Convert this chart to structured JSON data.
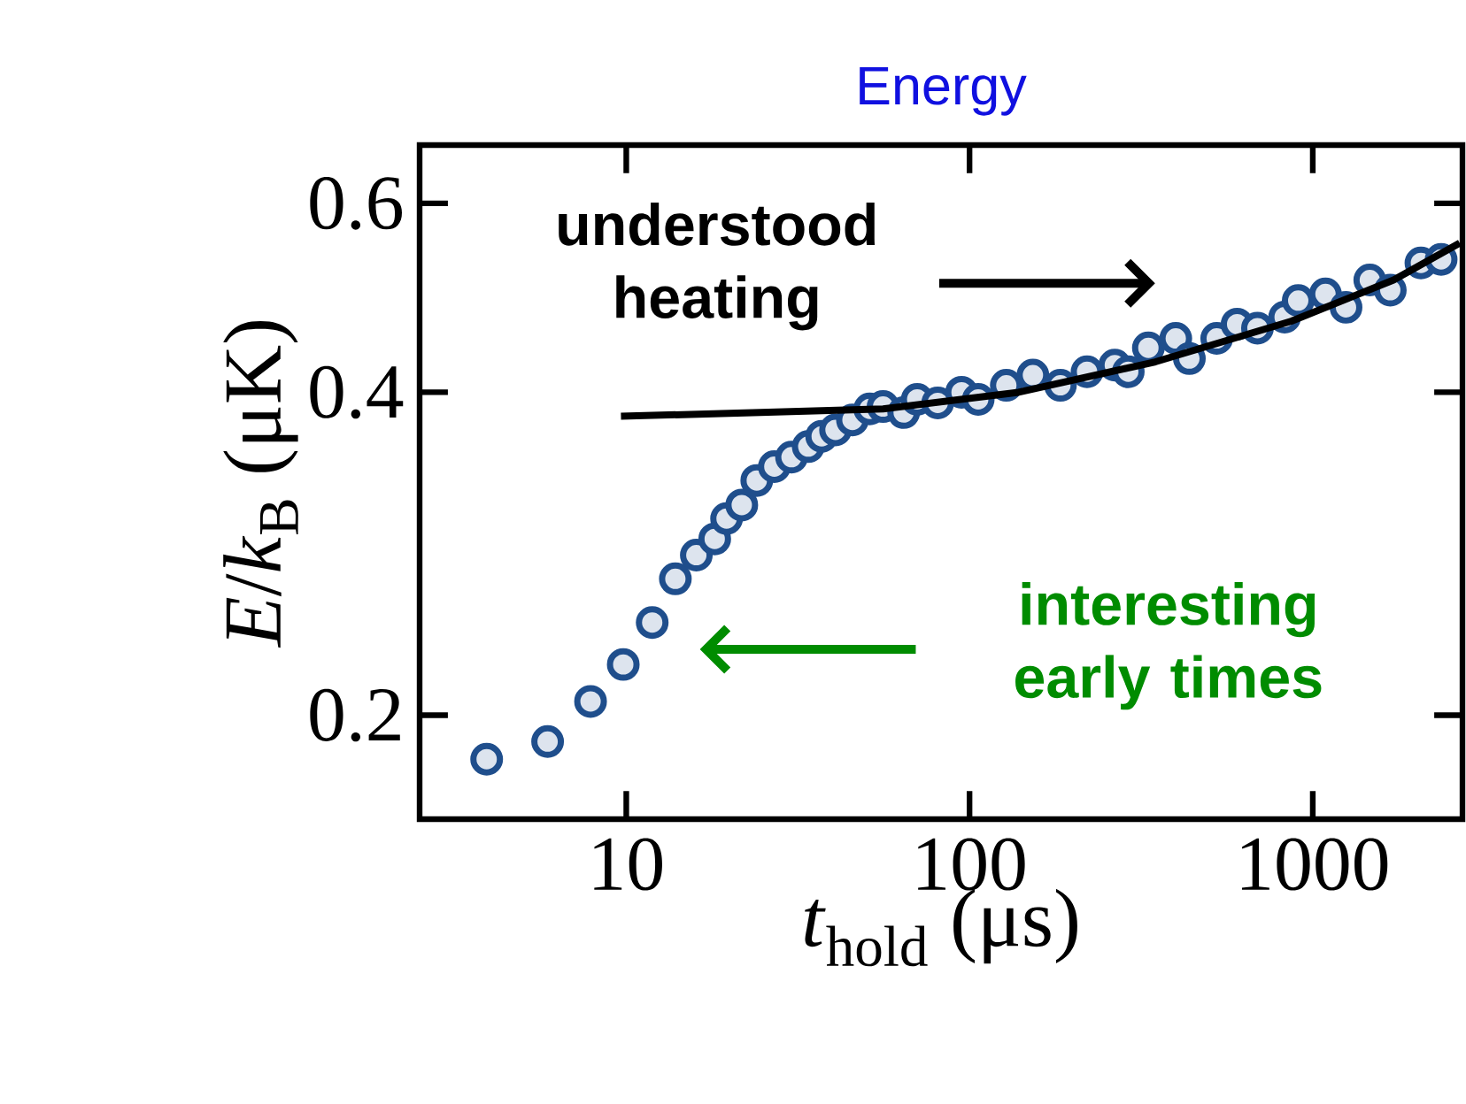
{
  "chart_data": {
    "type": "scatter",
    "title": "Energy",
    "xlabel": "*t*$_{hold}$ (μs)",
    "ylabel": "*E*/*k*$_{B}$ (μK)",
    "series": [
      {
        "color": "#1f4e8c",
        "marker": "circle",
        "x": [
          3.92,
          5.9,
          7.87,
          9.8,
          11.9,
          13.9,
          16.0,
          18.1,
          19.6,
          21.7,
          24.0,
          27.0,
          30.3,
          33.9,
          37.1,
          40.7,
          45.6,
          51.2,
          56.0,
          64.3,
          70.4,
          80.8,
          94.8,
          106,
          128,
          153,
          184,
          220,
          265,
          290,
          332,
          399,
          437,
          525,
          602,
          690,
          828,
          907,
          1089,
          1250,
          1466,
          1682,
          2066,
          2366
        ],
        "values": [
          0.182,
          0.189,
          0.206,
          0.223,
          0.244,
          0.268,
          0.282,
          0.292,
          0.305,
          0.314,
          0.331,
          0.341,
          0.348,
          0.356,
          0.364,
          0.369,
          0.377,
          0.386,
          0.388,
          0.383,
          0.394,
          0.391,
          0.4,
          0.394,
          0.406,
          0.415,
          0.406,
          0.418,
          0.424,
          0.418,
          0.44,
          0.449,
          0.43,
          0.449,
          0.463,
          0.459,
          0.47,
          0.487,
          0.494,
          0.48,
          0.509,
          0.498,
          0.528,
          0.532
        ]
      },
      {
        "type": "line",
        "color": "#000000",
        "marker": "none",
        "x": [
          9.65,
          24.6,
          56,
          139,
          348,
          867,
          1720,
          2680
        ],
        "values": [
          0.38,
          0.383,
          0.386,
          0.4,
          0.427,
          0.466,
          0.509,
          0.551
        ]
      }
    ],
    "xlim": [
      2.5,
      2730
    ],
    "ylim": [
      0.16,
      0.68
    ],
    "xticks": [
      10,
      100,
      1000
    ],
    "yticks": [
      0.2,
      0.4,
      0.6
    ],
    "log": "xy",
    "grid": false,
    "annotations": [
      "understood heating",
      "interesting early times"
    ]
  }
}
